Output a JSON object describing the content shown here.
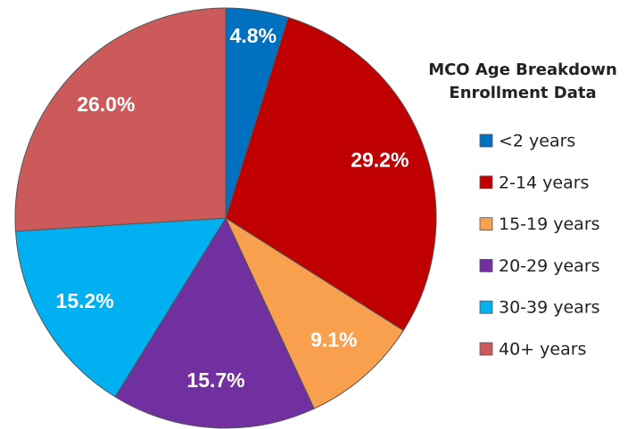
{
  "chart_data": {
    "type": "pie",
    "title": "MCO Age Breakdown Enrollment Data",
    "categories": [
      "<2 years",
      "2-14 years",
      "15-19 years",
      "20-29 years",
      "30-39 years",
      "40+ years"
    ],
    "values": [
      4.8,
      29.2,
      9.1,
      15.7,
      15.2,
      26.0
    ],
    "value_labels": [
      "4.8%",
      "29.2%",
      "9.1%",
      "15.7%",
      "15.2%",
      "26.0%"
    ],
    "colors": [
      "#0070c0",
      "#c00000",
      "#f9a04f",
      "#7030a0",
      "#00b0f0",
      "#cd5a5a"
    ]
  }
}
